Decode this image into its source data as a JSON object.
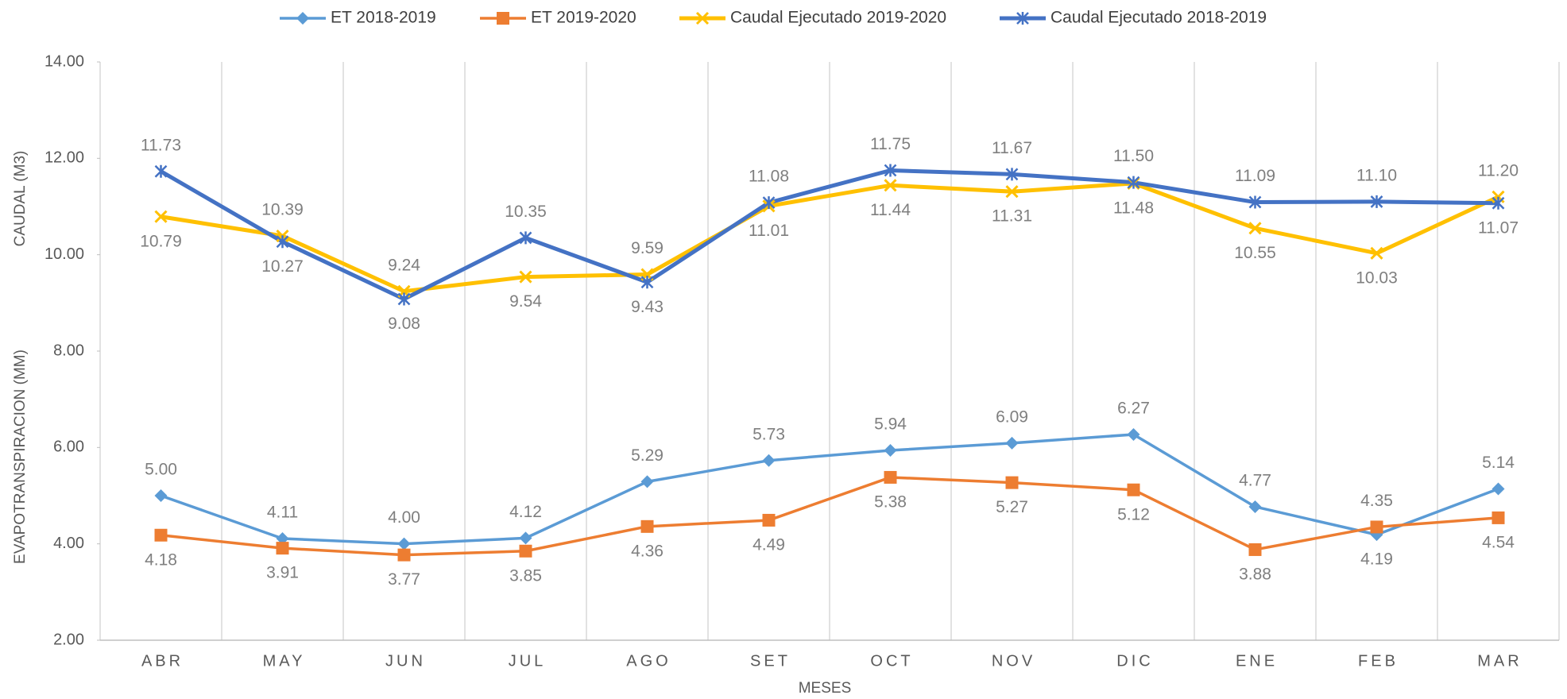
{
  "chart_data": {
    "type": "line",
    "x_label": "MESES",
    "y_labels": [
      "CAUDAL (M3)",
      "EVAPOTRANSPIRACION (MM)"
    ],
    "categories": [
      "ABR",
      "MAY",
      "JUN",
      "JUL",
      "AGO",
      "SET",
      "OCT",
      "NOV",
      "DIC",
      "ENE",
      "FEB",
      "MAR"
    ],
    "ylim": [
      2,
      14
    ],
    "yticks": [
      {
        "value": 2,
        "label": "2.00"
      },
      {
        "value": 4,
        "label": "4.00"
      },
      {
        "value": 6,
        "label": "6.00"
      },
      {
        "value": 8,
        "label": "8.00"
      },
      {
        "value": 10,
        "label": "10.00"
      },
      {
        "value": 12,
        "label": "12.00"
      },
      {
        "value": 14,
        "label": "14.00"
      }
    ],
    "legend": "top",
    "series": [
      {
        "name": "ET 2018-2019",
        "color": "#5b9bd5",
        "marker": "diamond",
        "values": [
          5.0,
          4.11,
          4.0,
          4.12,
          5.29,
          5.73,
          5.94,
          6.09,
          6.27,
          4.77,
          4.19,
          5.14
        ],
        "value_labels": [
          "5.00",
          "4.11",
          "4.00",
          "4.12",
          "5.29",
          "5.73",
          "5.94",
          "6.09",
          "6.27",
          "4.77",
          "4.19",
          "5.14"
        ]
      },
      {
        "name": "ET 2019-2020",
        "color": "#ed7d31",
        "marker": "square",
        "values": [
          4.18,
          3.91,
          3.77,
          3.85,
          4.36,
          4.49,
          5.38,
          5.27,
          5.12,
          3.88,
          4.35,
          4.54
        ],
        "value_labels": [
          "4.18",
          "3.91",
          "3.77",
          "3.85",
          "4.36",
          "4.49",
          "5.38",
          "5.27",
          "5.12",
          "3.88",
          "4.35",
          "4.54"
        ]
      },
      {
        "name": "Caudal Ejecutado 2019-2020",
        "color": "#ffc000",
        "marker": "x",
        "values": [
          10.79,
          10.39,
          9.24,
          9.54,
          9.59,
          11.01,
          11.44,
          11.31,
          11.48,
          10.55,
          10.03,
          11.2
        ],
        "value_labels": [
          "10.79",
          "10.39",
          "9.24",
          "9.54",
          "9.59",
          "11.01",
          "11.44",
          "11.31",
          "11.48",
          "10.55",
          "10.03",
          "11.20"
        ]
      },
      {
        "name": "Caudal Ejecutado 2018-2019",
        "color": "#4472c4",
        "marker": "star",
        "values": [
          11.73,
          10.27,
          9.08,
          10.35,
          9.43,
          11.08,
          11.75,
          11.67,
          11.5,
          11.09,
          11.1,
          11.07
        ],
        "value_labels": [
          "11.73",
          "10.27",
          "9.08",
          "10.35",
          "9.43",
          "11.08",
          "11.75",
          "11.67",
          "11.50",
          "11.09",
          "11.10",
          "11.07"
        ]
      }
    ]
  }
}
